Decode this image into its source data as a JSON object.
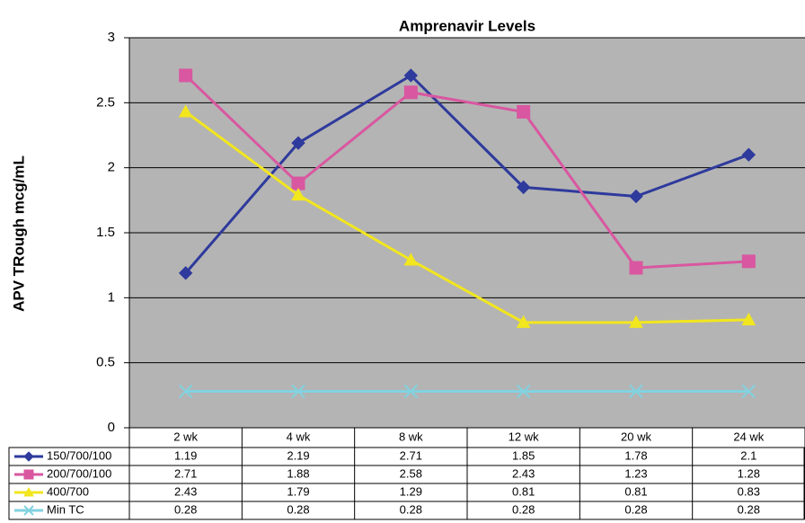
{
  "chart_data": {
    "type": "line",
    "title": "Amprenavir Levels",
    "y_label": "APV TRough mcg/mL",
    "categories": [
      "2 wk",
      "4 wk",
      "8 wk",
      "12 wk",
      "20 wk",
      "24 wk"
    ],
    "series": [
      {
        "name": "150/700/100",
        "color": "#2e3a9c",
        "marker": "diamond",
        "values": [
          1.19,
          2.19,
          2.71,
          1.85,
          1.78,
          2.1
        ]
      },
      {
        "name": "200/700/100",
        "color": "#d957a0",
        "marker": "square",
        "values": [
          2.71,
          1.88,
          2.58,
          2.43,
          1.23,
          1.28
        ]
      },
      {
        "name": "400/700",
        "color": "#f2e61e",
        "marker": "triangle",
        "values": [
          2.43,
          1.79,
          1.29,
          0.81,
          0.81,
          0.83
        ]
      },
      {
        "name": "Min TC",
        "color": "#82d2e0",
        "marker": "x",
        "values": [
          0.28,
          0.28,
          0.28,
          0.28,
          0.28,
          0.28
        ]
      }
    ],
    "ylim": [
      0,
      3
    ],
    "yticks": [
      0,
      0.5,
      1,
      1.5,
      2,
      2.5,
      3
    ],
    "grid": true,
    "background": "#b4b4b4"
  }
}
